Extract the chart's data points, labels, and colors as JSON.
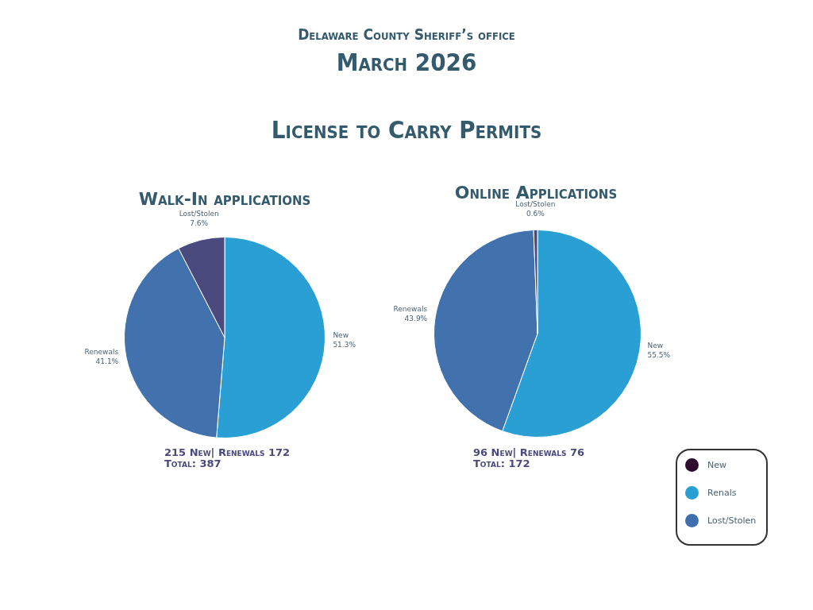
{
  "chart_data": [
    {
      "type": "other",
      "annotations": [
        "Delaware County Sheriff’s office",
        "March 2026",
        "License to Carry Permits"
      ]
    },
    {
      "type": "pie",
      "title": "Walk-In applications",
      "categories": [
        "New",
        "Renewals",
        "Lost/Stolen"
      ],
      "values": [
        51.3,
        41.1,
        7.6
      ],
      "colors": [
        "#2a9fd4",
        "#4172ae",
        "#4a4a7e"
      ],
      "value_labels": [
        "51.3%",
        "41.1%",
        "7.6%"
      ],
      "annotations": [
        "215 New| Renewals 172",
        "Total: 387"
      ]
    },
    {
      "type": "pie",
      "title": "Online Applications",
      "categories": [
        "New",
        "Renewals",
        "Lost/Stolen"
      ],
      "values": [
        55.5,
        43.9,
        0.6
      ],
      "colors": [
        "#2a9fd4",
        "#4172ae",
        "#4a4a7e"
      ],
      "value_labels": [
        "55.5%",
        "43.9%",
        "0.6%"
      ],
      "annotations": [
        "96 New| Renewals 76",
        "Total: 172"
      ]
    },
    {
      "type": "other",
      "annotations": [
        "New",
        "Renals",
        "Lost/Stolen"
      ],
      "colors": [
        "#2d0a2e",
        "#2a9fd4",
        "#3f6fae"
      ]
    }
  ]
}
